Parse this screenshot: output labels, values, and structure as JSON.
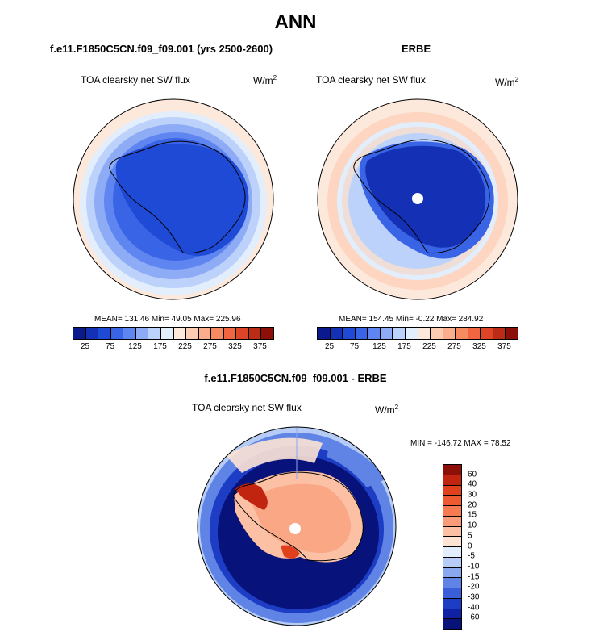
{
  "main_title": "ANN",
  "panels": [
    {
      "title": "f.e11.F1850C5CN.f09_f09.001 (yrs 2500-2600)",
      "variable": "TOA clearsky net SW flux",
      "units": "W/m",
      "units_sup": "2",
      "stats": "MEAN= 131.46  Min=  49.05  Max= 225.96"
    },
    {
      "title": "ERBE",
      "variable": "TOA clearsky net SW flux",
      "units": "W/m",
      "units_sup": "2",
      "stats": "MEAN= 154.45  Min=  -0.22  Max= 284.92"
    },
    {
      "title": "f.e11.F1850C5CN.f09_f09.001 - ERBE",
      "variable": "TOA clearsky net SW flux",
      "units": "W/m",
      "units_sup": "2",
      "stats": "MIN = -146.72 MAX =  78.52"
    }
  ],
  "colorbar_top": {
    "labels": [
      "25",
      "75",
      "125",
      "175",
      "225",
      "275",
      "325",
      "375"
    ],
    "colors": [
      "#0a1a8c",
      "#1431b5",
      "#1f4ad6",
      "#3a64e6",
      "#5f86f0",
      "#8eabf6",
      "#bcd2fa",
      "#e2eefc",
      "#fde8dc",
      "#fccdb3",
      "#fbae8c",
      "#f88a62",
      "#f16640",
      "#dd4526",
      "#bc2b16",
      "#8c1007"
    ]
  },
  "colorbar_diff": {
    "labels": [
      "60",
      "40",
      "30",
      "20",
      "15",
      "10",
      "5",
      "0",
      "-5",
      "-10",
      "-15",
      "-20",
      "-30",
      "-40",
      "-60"
    ],
    "colors": [
      "#8c1007",
      "#c1250f",
      "#e0401c",
      "#f05a30",
      "#f77a50",
      "#fa9c78",
      "#fcc0a4",
      "#fde3d4",
      "#e2eefc",
      "#b6ccf6",
      "#8aa8ee",
      "#5f84e6",
      "#3a5fd8",
      "#1d3dc4",
      "#0f22a6",
      "#07137a"
    ]
  }
}
